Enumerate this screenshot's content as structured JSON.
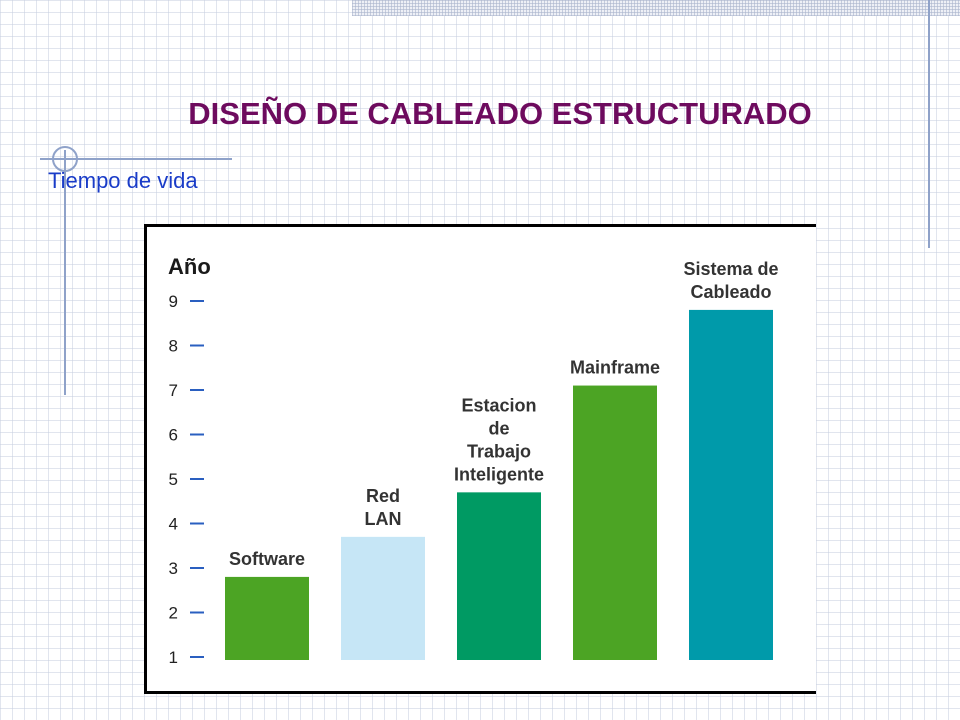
{
  "slide": {
    "title": "DISEÑO DE CABLEADO ESTRUCTURADO",
    "subtitle": "Tiempo de vida"
  },
  "chart_data": {
    "type": "bar",
    "ylabel": "Año",
    "ylim": [
      1,
      9
    ],
    "yticks": [
      "1",
      "2",
      "3",
      "4",
      "5",
      "6",
      "7",
      "8",
      "9"
    ],
    "grid": false,
    "categories": [
      {
        "lines": [
          "Software"
        ],
        "value": 2.8,
        "color": "#4ca424"
      },
      {
        "lines": [
          "Red",
          "LAN"
        ],
        "value": 3.7,
        "color": "#c6e6f6"
      },
      {
        "lines": [
          "Estacion",
          "de",
          "Trabajo",
          "Inteligente"
        ],
        "value": 4.7,
        "color": "#009a63"
      },
      {
        "lines": [
          "Mainframe"
        ],
        "value": 7.1,
        "color": "#4ca424"
      },
      {
        "lines": [
          "Sistema de",
          "Cableado"
        ],
        "value": 8.8,
        "color": "#009aaa"
      }
    ]
  }
}
